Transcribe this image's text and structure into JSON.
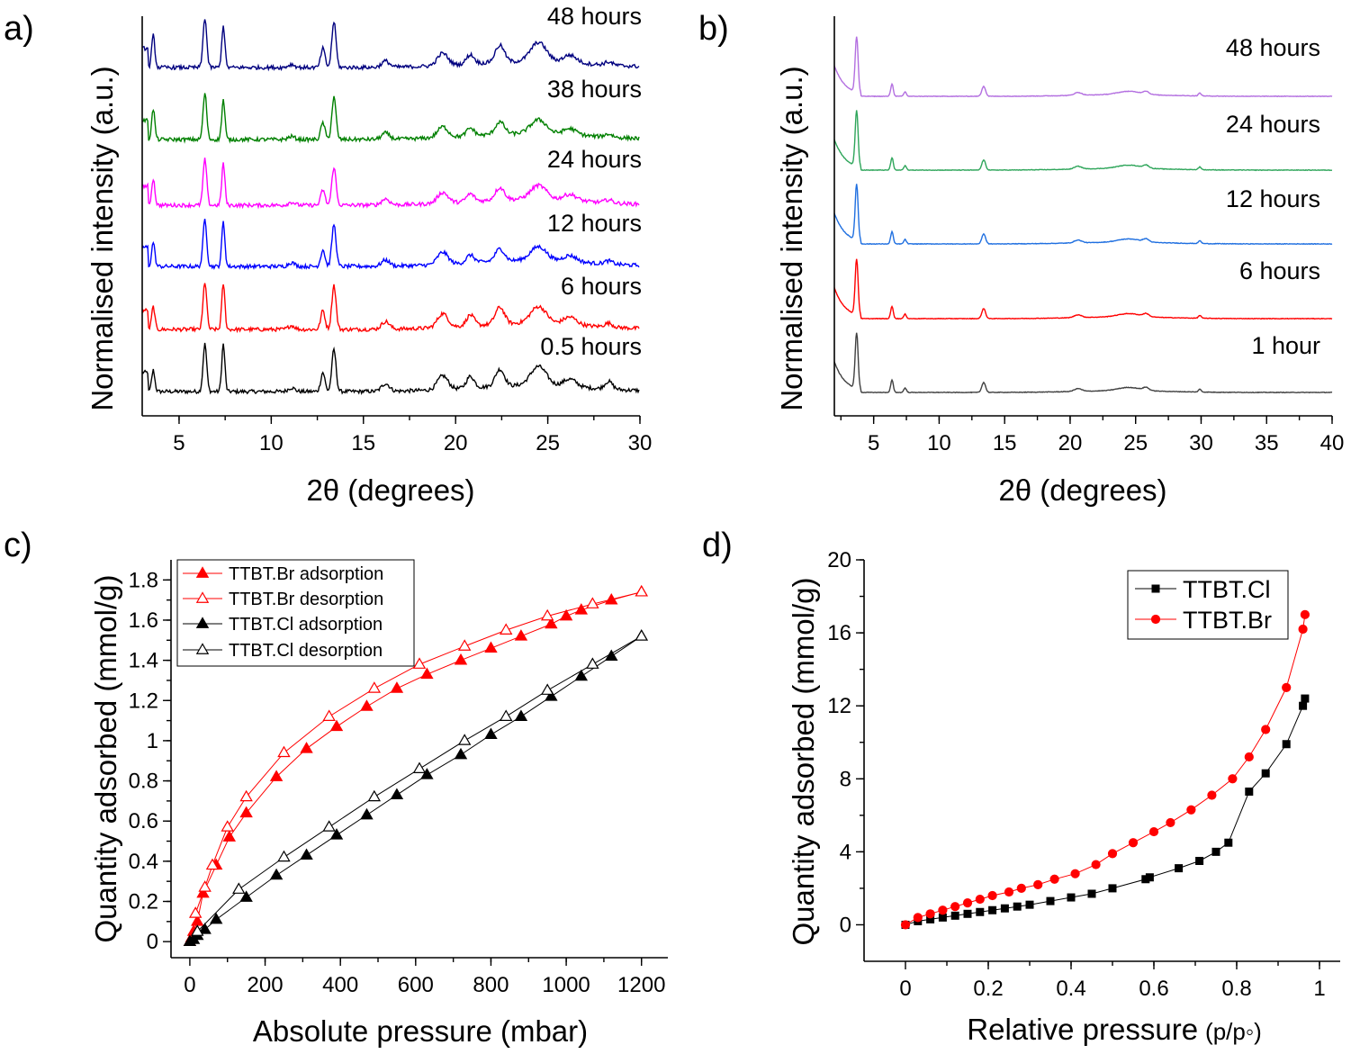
{
  "panels": {
    "a": {
      "letter": "a)",
      "xlabel": "2θ (degrees)",
      "ylabel": "Normalised intensity (a.u.)",
      "x_ticks": [
        "5",
        "10",
        "15",
        "20",
        "25",
        "30"
      ],
      "curve_labels": [
        "48 hours",
        "38 hours",
        "24 hours",
        "12 hours",
        "6 hours",
        "0.5 hours"
      ]
    },
    "b": {
      "letter": "b)",
      "xlabel": "2θ (degrees)",
      "ylabel": "Normalised intensity (a.u.)",
      "x_ticks": [
        "5",
        "10",
        "15",
        "20",
        "25",
        "30",
        "35",
        "40"
      ],
      "curve_labels": [
        "48 hours",
        "24 hours",
        "12 hours",
        "6 hours",
        "1 hour"
      ]
    },
    "c": {
      "letter": "c)",
      "xlabel": "Absolute pressure (mbar)",
      "ylabel": "Quantity adsorbed (mmol/g)",
      "x_ticks": [
        "0",
        "200",
        "400",
        "600",
        "800",
        "1000",
        "1200"
      ],
      "y_ticks": [
        "0",
        "0.2",
        "0.4",
        "0.6",
        "0.8",
        "1",
        "1.2",
        "1.4",
        "1.6",
        "1.8"
      ],
      "legend": [
        "TTBT.Br adsorption",
        "TTBT.Br desorption",
        "TTBT.Cl adsorption",
        "TTBT.Cl desorption"
      ]
    },
    "d": {
      "letter": "d)",
      "xlabel": "Relative pressure",
      "xlabel_unit": "(p/p◦)",
      "ylabel": "Quantity adsorbed (mmol/g)",
      "x_ticks": [
        "0",
        "0.2",
        "0.4",
        "0.6",
        "0.8",
        "1"
      ],
      "y_ticks": [
        "0",
        "4",
        "8",
        "12",
        "16",
        "20"
      ],
      "legend": [
        "TTBT.Cl",
        "TTBT.Br"
      ]
    }
  },
  "chart_data": [
    {
      "panel": "a",
      "type": "line",
      "xlabel": "2θ (degrees)",
      "ylabel": "Normalised intensity (a.u.)",
      "xlim": [
        3,
        30
      ],
      "peak_positions": [
        3.6,
        6.4,
        7.4,
        11.1,
        12.8,
        13.4,
        16.2,
        19.3,
        20.8,
        22.4,
        24.5,
        26.2,
        28.3
      ],
      "series": [
        {
          "name": "0.5 hours",
          "color": "#000000",
          "peak_heights": [
            0.28,
            0.62,
            0.62,
            0.05,
            0.25,
            0.55,
            0.1,
            0.18,
            0.15,
            0.22,
            0.25,
            0.1,
            0.1
          ]
        },
        {
          "name": "6 hours",
          "color": "#ff0000",
          "peak_heights": [
            0.3,
            0.62,
            0.6,
            0.05,
            0.25,
            0.58,
            0.1,
            0.18,
            0.14,
            0.22,
            0.22,
            0.1,
            0.05
          ]
        },
        {
          "name": "12 hours",
          "color": "#0000ff",
          "peak_heights": [
            0.32,
            0.62,
            0.58,
            0.05,
            0.22,
            0.55,
            0.08,
            0.16,
            0.1,
            0.16,
            0.18,
            0.08,
            0.04
          ]
        },
        {
          "name": "24 hours",
          "color": "#ff00ff",
          "peak_heights": [
            0.35,
            0.6,
            0.55,
            0.04,
            0.2,
            0.5,
            0.08,
            0.14,
            0.1,
            0.16,
            0.18,
            0.08,
            0.04
          ]
        },
        {
          "name": "38 hours",
          "color": "#008000",
          "peak_heights": [
            0.4,
            0.6,
            0.52,
            0.04,
            0.22,
            0.55,
            0.08,
            0.14,
            0.1,
            0.16,
            0.18,
            0.08,
            0.04
          ]
        },
        {
          "name": "48 hours",
          "color": "#00007f",
          "peak_heights": [
            0.42,
            0.65,
            0.55,
            0.04,
            0.25,
            0.6,
            0.08,
            0.16,
            0.12,
            0.22,
            0.25,
            0.1,
            0.04
          ]
        }
      ]
    },
    {
      "panel": "b",
      "type": "line",
      "xlabel": "2θ (degrees)",
      "ylabel": "Normalised intensity (a.u.)",
      "xlim": [
        2,
        40
      ],
      "peak_positions": [
        3.7,
        6.4,
        7.4,
        13.4,
        20.6,
        24.5,
        25.8,
        29.9
      ],
      "series": [
        {
          "name": "1 hour",
          "color": "#404040",
          "peak_heights": [
            1.0,
            0.22,
            0.08,
            0.18,
            0.05,
            0.06,
            0.05,
            0.05
          ]
        },
        {
          "name": "6 hours",
          "color": "#ff0000",
          "peak_heights": [
            1.0,
            0.22,
            0.08,
            0.18,
            0.05,
            0.06,
            0.05,
            0.05
          ]
        },
        {
          "name": "12 hours",
          "color": "#1f6fe0",
          "peak_heights": [
            1.0,
            0.22,
            0.08,
            0.18,
            0.05,
            0.06,
            0.05,
            0.05
          ]
        },
        {
          "name": "24 hours",
          "color": "#2ea55a",
          "peak_heights": [
            1.0,
            0.22,
            0.08,
            0.18,
            0.05,
            0.06,
            0.05,
            0.05
          ]
        },
        {
          "name": "48 hours",
          "color": "#b36fe0",
          "peak_heights": [
            1.0,
            0.22,
            0.08,
            0.18,
            0.05,
            0.06,
            0.05,
            0.05
          ]
        }
      ]
    },
    {
      "panel": "c",
      "type": "line",
      "xlabel": "Absolute pressure (mbar)",
      "ylabel": "Quantity adsorbed (mmol/g)",
      "xlim": [
        -50,
        1270
      ],
      "ylim": [
        -0.08,
        1.9
      ],
      "series": [
        {
          "name": "TTBT.Br adsorption",
          "color": "#ff0000",
          "marker": "filled-triangle",
          "x": [
            0,
            5,
            10,
            20,
            35,
            70,
            105,
            150,
            230,
            310,
            390,
            470,
            550,
            630,
            720,
            800,
            880,
            960,
            1000,
            1040,
            1120,
            1200
          ],
          "y": [
            0.0,
            0.02,
            0.05,
            0.1,
            0.24,
            0.38,
            0.52,
            0.64,
            0.82,
            0.96,
            1.07,
            1.17,
            1.26,
            1.33,
            1.4,
            1.46,
            1.52,
            1.58,
            1.62,
            1.65,
            1.7,
            1.74
          ]
        },
        {
          "name": "TTBT.Br desorption",
          "color": "#ff0000",
          "marker": "open-triangle",
          "x": [
            1200,
            1070,
            950,
            840,
            730,
            610,
            490,
            370,
            250,
            150,
            100,
            60,
            40,
            15
          ],
          "y": [
            1.74,
            1.68,
            1.62,
            1.55,
            1.47,
            1.38,
            1.26,
            1.12,
            0.94,
            0.72,
            0.57,
            0.38,
            0.27,
            0.14
          ]
        },
        {
          "name": "TTBT.Cl adsorption",
          "color": "#000000",
          "marker": "filled-triangle",
          "x": [
            0,
            10,
            20,
            40,
            70,
            150,
            230,
            310,
            390,
            470,
            550,
            630,
            720,
            800,
            880,
            960,
            1040,
            1120,
            1200
          ],
          "y": [
            0.0,
            0.01,
            0.03,
            0.06,
            0.11,
            0.22,
            0.33,
            0.43,
            0.53,
            0.63,
            0.73,
            0.83,
            0.93,
            1.03,
            1.12,
            1.22,
            1.32,
            1.42,
            1.52
          ]
        },
        {
          "name": "TTBT.Cl desorption",
          "color": "#000000",
          "marker": "open-triangle",
          "x": [
            1200,
            1070,
            950,
            840,
            730,
            610,
            490,
            370,
            250,
            130,
            20
          ],
          "y": [
            1.52,
            1.38,
            1.25,
            1.12,
            1.0,
            0.86,
            0.72,
            0.57,
            0.42,
            0.26,
            0.05
          ]
        }
      ]
    },
    {
      "panel": "d",
      "type": "line",
      "xlabel": "Relative pressure (p/p◦)",
      "ylabel": "Quantity adsorbed (mmol/g)",
      "xlim": [
        -0.1,
        1.05
      ],
      "ylim": [
        -2,
        20
      ],
      "series": [
        {
          "name": "TTBT.Cl",
          "color": "#000000",
          "marker": "filled-square",
          "x": [
            0.0,
            0.03,
            0.06,
            0.09,
            0.12,
            0.15,
            0.18,
            0.21,
            0.24,
            0.27,
            0.3,
            0.35,
            0.4,
            0.45,
            0.5,
            0.58,
            0.59,
            0.66,
            0.71,
            0.75,
            0.78,
            0.83,
            0.87,
            0.92,
            0.96,
            0.965
          ],
          "y": [
            0.0,
            0.2,
            0.3,
            0.4,
            0.5,
            0.6,
            0.7,
            0.8,
            0.9,
            1.0,
            1.1,
            1.3,
            1.5,
            1.7,
            2.0,
            2.5,
            2.6,
            3.1,
            3.5,
            4.0,
            4.5,
            7.3,
            8.3,
            9.9,
            12.0,
            12.4
          ]
        },
        {
          "name": "TTBT.Br",
          "color": "#ff0000",
          "marker": "filled-circle",
          "x": [
            0.0,
            0.03,
            0.06,
            0.09,
            0.12,
            0.15,
            0.18,
            0.21,
            0.25,
            0.28,
            0.32,
            0.36,
            0.41,
            0.46,
            0.5,
            0.55,
            0.6,
            0.64,
            0.69,
            0.74,
            0.79,
            0.83,
            0.87,
            0.92,
            0.96,
            0.965
          ],
          "y": [
            0.0,
            0.4,
            0.6,
            0.8,
            1.0,
            1.2,
            1.4,
            1.6,
            1.8,
            2.0,
            2.2,
            2.5,
            2.8,
            3.3,
            3.9,
            4.5,
            5.1,
            5.6,
            6.3,
            7.1,
            8.0,
            9.2,
            10.7,
            13.0,
            16.2,
            17.0
          ]
        }
      ]
    }
  ]
}
